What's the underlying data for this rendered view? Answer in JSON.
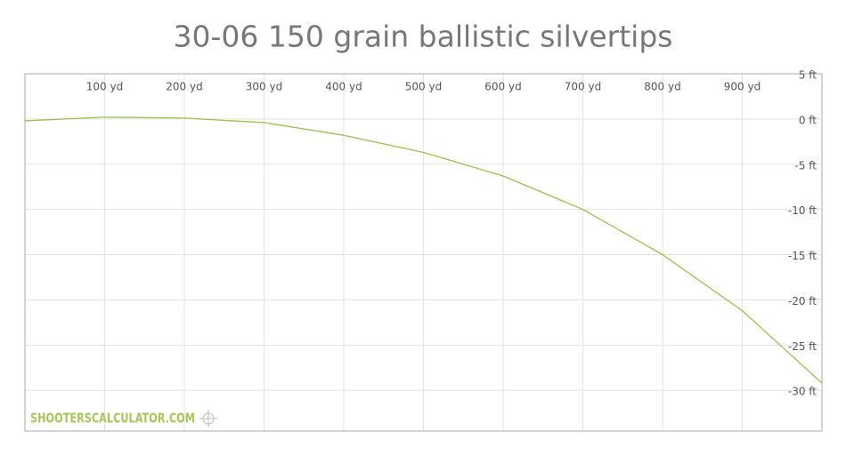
{
  "chart_data": {
    "type": "line",
    "title": "30-06 150 grain ballistic silvertips",
    "watermark": "SHOOTERSCALCULATOR.COM",
    "x": [
      0,
      100,
      200,
      300,
      400,
      500,
      600,
      700,
      800,
      900,
      1000
    ],
    "values": [
      -0.2,
      0.2,
      0.1,
      -0.4,
      -1.8,
      -3.7,
      -6.3,
      -10.0,
      -15.0,
      -21.2,
      -29.2
    ],
    "color": "#9cbf4e",
    "xlim": [
      0,
      1000
    ],
    "ylim": [
      -34.5,
      5
    ],
    "xticks": [
      {
        "value": 100,
        "label": "100 yd"
      },
      {
        "value": 200,
        "label": "200 yd"
      },
      {
        "value": 300,
        "label": "300 yd"
      },
      {
        "value": 400,
        "label": "400 yd"
      },
      {
        "value": 500,
        "label": "500 yd"
      },
      {
        "value": 600,
        "label": "600 yd"
      },
      {
        "value": 700,
        "label": "700 yd"
      },
      {
        "value": 800,
        "label": "800 yd"
      },
      {
        "value": 900,
        "label": "900 yd"
      }
    ],
    "yticks": [
      {
        "value": 5,
        "label": "5 ft"
      },
      {
        "value": 0,
        "label": "0 ft"
      },
      {
        "value": -5,
        "label": "-5 ft"
      },
      {
        "value": -10,
        "label": "-10 ft"
      },
      {
        "value": -15,
        "label": "-15 ft"
      },
      {
        "value": -20,
        "label": "-20 ft"
      },
      {
        "value": -25,
        "label": "-25 ft"
      },
      {
        "value": -30,
        "label": "-30 ft"
      }
    ],
    "grid": true
  }
}
